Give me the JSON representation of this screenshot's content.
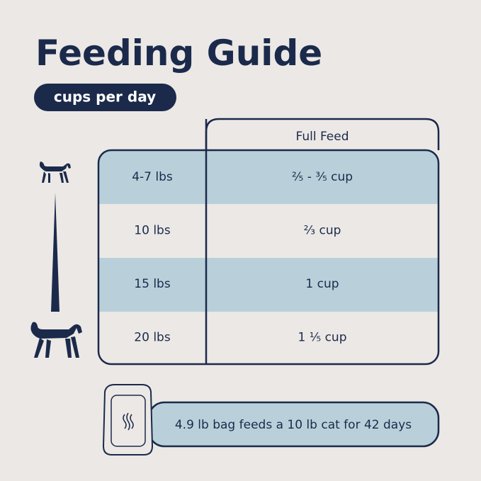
{
  "header": {
    "title": "Feeding Guide",
    "subtitle": "cups per day"
  },
  "table": {
    "column_header": "Full Feed",
    "rows": [
      [
        "4-7 lbs",
        "²⁄₅ - ³⁄₅ cup"
      ],
      [
        "10 lbs",
        "²⁄₃ cup"
      ],
      [
        "15 lbs",
        "1 cup"
      ],
      [
        "20 lbs",
        "1 ¹⁄₅ cup"
      ]
    ]
  },
  "footer": {
    "note": "4.9 lb bag feeds a 10 lb cat for 42 days"
  }
}
